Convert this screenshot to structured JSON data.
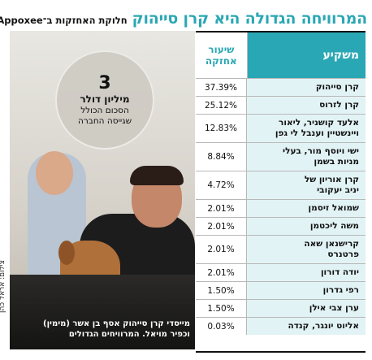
{
  "headline": {
    "title": "המרוויחה הגדולה היא קרן סייהוק",
    "subtitle": "חלוקת האחזקות ב־Appoxee"
  },
  "badge": {
    "number": "3",
    "line1": "מיליון דולר",
    "line2": "הסכום הכולל",
    "line3": "שגייסה החברה"
  },
  "caption": {
    "line1": "מייסדי קרן סייהוק אסף בן אשר (מימין)",
    "line2": "וכפיר מויאל. המרוויחים הגדולים"
  },
  "credit": "צילום: אראל כהן",
  "table": {
    "header_name": "משקיע",
    "header_pct": "שיעור\nאחזקה",
    "rows": [
      {
        "name": "קרן סייהוק",
        "pct": "37.39%"
      },
      {
        "name": "קרן לזרוס",
        "pct": "25.12%"
      },
      {
        "name": "אלעד קושניר, ליאור\nויינשטיין וענבל לי גפן",
        "pct": "12.83%"
      },
      {
        "name": "ישי ויוסף מור, בעלי\nמניות בשמן",
        "pct": "8.84%"
      },
      {
        "name": "קרן אוריון של\nיניב יעקובי",
        "pct": "4.72%"
      },
      {
        "name": "שמואל זיסמן",
        "pct": "2.01%"
      },
      {
        "name": "משה ליכטמן",
        "pct": "2.01%"
      },
      {
        "name": "קרישנאן שאה\nפרטנרס",
        "pct": "2.01%"
      },
      {
        "name": "יודה דורון",
        "pct": "2.01%"
      },
      {
        "name": "רפי גדרון",
        "pct": "1.50%"
      },
      {
        "name": "ערן צבי אילן",
        "pct": "1.50%"
      },
      {
        "name": "אליוט יונגר, קנדה",
        "pct": "0.03%"
      }
    ]
  }
}
